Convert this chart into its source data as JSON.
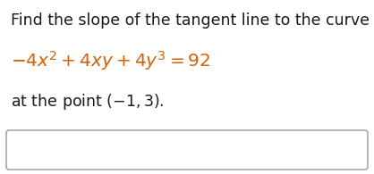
{
  "line1": "Find the slope of the tangent line to the curve",
  "line2": "$-4x^2 + 4xy + 4y^3 = 92$",
  "line3_pre": "at the point (",
  "line3_math": "$-1, 3).$",
  "text_color_black": "#1a1a1a",
  "text_color_orange": "#d4600a",
  "bg_color": "#ffffff",
  "box_edge_color": "#999999",
  "font_size_line1": 12.5,
  "font_size_line2": 14.5,
  "font_size_line3": 12.5,
  "figwidth": 4.18,
  "figheight": 1.95,
  "dpi": 100
}
